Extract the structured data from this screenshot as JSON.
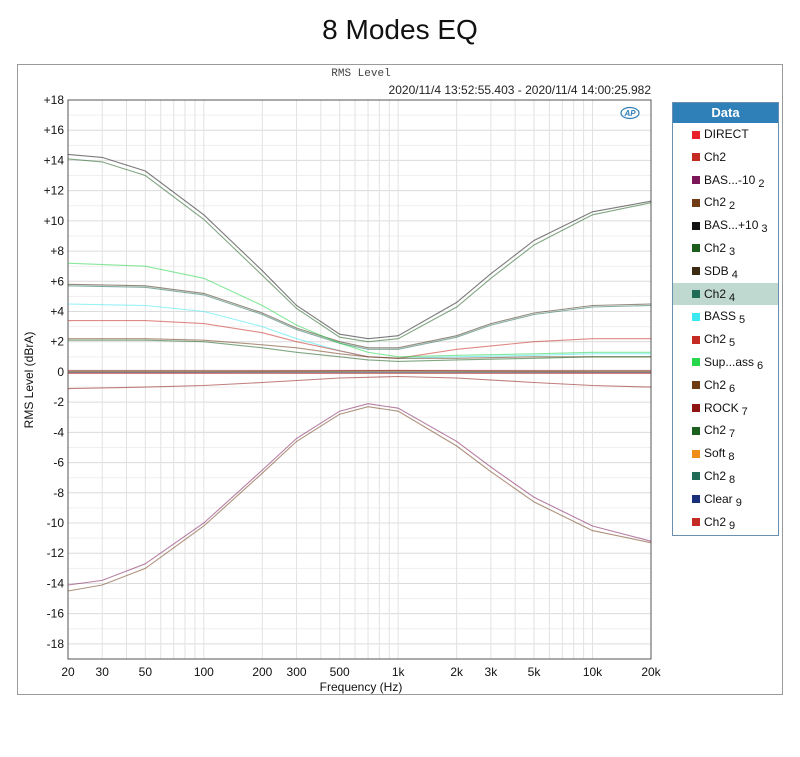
{
  "page_title": "8 Modes EQ",
  "plot_title": "RMS Level",
  "time_range": "2020/11/4 13:52:55.403 - 2020/11/4 14:00:25.982",
  "brand_logo": "AP",
  "legend": {
    "title": "Data",
    "items": [
      {
        "label": "DIRECT",
        "sub": "",
        "color": "#e8202a"
      },
      {
        "label": "Ch2",
        "sub": "",
        "color": "#c42b25"
      },
      {
        "label": "BAS...-10",
        "sub": "2",
        "color": "#7b1658"
      },
      {
        "label": "Ch2",
        "sub": "2",
        "color": "#6e3b14"
      },
      {
        "label": "BAS...+10",
        "sub": "3",
        "color": "#111111"
      },
      {
        "label": "Ch2",
        "sub": "3",
        "color": "#1c5e1e"
      },
      {
        "label": "SDB",
        "sub": "4",
        "color": "#3c2a12"
      },
      {
        "label": "Ch2",
        "sub": "4",
        "color": "#1f6b57",
        "selected": true
      },
      {
        "label": "BASS",
        "sub": "5",
        "color": "#3ee8f0"
      },
      {
        "label": "Ch2",
        "sub": "5",
        "color": "#c42b25"
      },
      {
        "label": "Sup...ass",
        "sub": "6",
        "color": "#27d64a"
      },
      {
        "label": "Ch2",
        "sub": "6",
        "color": "#6e3b14"
      },
      {
        "label": "ROCK",
        "sub": "7",
        "color": "#8e1414"
      },
      {
        "label": "Ch2",
        "sub": "7",
        "color": "#1c5e1e"
      },
      {
        "label": "Soft",
        "sub": "8",
        "color": "#f08c1a"
      },
      {
        "label": "Ch2",
        "sub": "8",
        "color": "#1f6b57"
      },
      {
        "label": "Clear",
        "sub": "9",
        "color": "#1a2f7a"
      },
      {
        "label": "Ch2",
        "sub": "9",
        "color": "#c42b25"
      }
    ]
  },
  "chart_data": {
    "type": "line",
    "xlabel": "Frequency (Hz)",
    "ylabel": "RMS Level (dBrA)",
    "x_scale": "log",
    "xlim": [
      20,
      20000
    ],
    "ylim": [
      -19,
      18
    ],
    "grid": true,
    "legend_position": "right",
    "x_ticks": [
      {
        "v": 20,
        "label": "20"
      },
      {
        "v": 30,
        "label": "30"
      },
      {
        "v": 50,
        "label": "50"
      },
      {
        "v": 100,
        "label": "100"
      },
      {
        "v": 200,
        "label": "200"
      },
      {
        "v": 300,
        "label": "300"
      },
      {
        "v": 500,
        "label": "500"
      },
      {
        "v": 1000,
        "label": "1k"
      },
      {
        "v": 2000,
        "label": "2k"
      },
      {
        "v": 3000,
        "label": "3k"
      },
      {
        "v": 5000,
        "label": "5k"
      },
      {
        "v": 10000,
        "label": "10k"
      },
      {
        "v": 20000,
        "label": "20k"
      }
    ],
    "y_ticks": [
      {
        "v": 18,
        "label": "+18"
      },
      {
        "v": 16,
        "label": "+16"
      },
      {
        "v": 14,
        "label": "+14"
      },
      {
        "v": 12,
        "label": "+12"
      },
      {
        "v": 10,
        "label": "+10"
      },
      {
        "v": 8,
        "label": "+8"
      },
      {
        "v": 6,
        "label": "+6"
      },
      {
        "v": 4,
        "label": "+4"
      },
      {
        "v": 2,
        "label": "+2"
      },
      {
        "v": 0,
        "label": "0"
      },
      {
        "v": -2,
        "label": "-2"
      },
      {
        "v": -4,
        "label": "-4"
      },
      {
        "v": -6,
        "label": "-6"
      },
      {
        "v": -8,
        "label": "-8"
      },
      {
        "v": -10,
        "label": "-10"
      },
      {
        "v": -12,
        "label": "-12"
      },
      {
        "v": -14,
        "label": "-14"
      },
      {
        "v": -16,
        "label": "-16"
      },
      {
        "v": -18,
        "label": "-18"
      }
    ],
    "series": [
      {
        "color": "#e8202a",
        "x": [
          20,
          100,
          1000,
          10000,
          20000
        ],
        "y": [
          0.0,
          0.0,
          0.1,
          0.0,
          0.0
        ]
      },
      {
        "color": "#c42b25",
        "x": [
          20,
          100,
          1000,
          10000,
          20000
        ],
        "y": [
          0.1,
          0.1,
          0.1,
          0.1,
          0.1
        ]
      },
      {
        "color": "#7b1658",
        "x": [
          20,
          30,
          50,
          100,
          200,
          300,
          500,
          700,
          1000,
          2000,
          3000,
          5000,
          10000,
          20000
        ],
        "y": [
          -14.1,
          -13.8,
          -12.7,
          -10.0,
          -6.5,
          -4.4,
          -2.6,
          -2.1,
          -2.4,
          -4.6,
          -6.3,
          -8.3,
          -10.2,
          -11.2
        ]
      },
      {
        "color": "#6e3b14",
        "x": [
          20,
          30,
          50,
          100,
          200,
          300,
          500,
          700,
          1000,
          2000,
          3000,
          5000,
          10000,
          20000
        ],
        "y": [
          -14.5,
          -14.1,
          -13.0,
          -10.2,
          -6.7,
          -4.6,
          -2.8,
          -2.3,
          -2.6,
          -4.9,
          -6.6,
          -8.6,
          -10.5,
          -11.3
        ]
      },
      {
        "color": "#111111",
        "x": [
          20,
          30,
          50,
          100,
          200,
          300,
          500,
          700,
          1000,
          2000,
          3000,
          5000,
          10000,
          20000
        ],
        "y": [
          14.4,
          14.2,
          13.3,
          10.4,
          6.7,
          4.4,
          2.5,
          2.2,
          2.4,
          4.6,
          6.5,
          8.7,
          10.6,
          11.3
        ]
      },
      {
        "color": "#1c5e1e",
        "x": [
          20,
          30,
          50,
          100,
          200,
          300,
          500,
          700,
          1000,
          2000,
          3000,
          5000,
          10000,
          20000
        ],
        "y": [
          14.1,
          13.9,
          13.0,
          10.1,
          6.4,
          4.2,
          2.3,
          2.0,
          2.2,
          4.3,
          6.2,
          8.4,
          10.4,
          11.2
        ]
      },
      {
        "color": "#3c2a12",
        "x": [
          20,
          50,
          100,
          200,
          300,
          500,
          700,
          1000,
          2000,
          3000,
          5000,
          10000,
          20000
        ],
        "y": [
          5.8,
          5.7,
          5.2,
          3.9,
          2.9,
          2.0,
          1.6,
          1.6,
          2.4,
          3.2,
          3.9,
          4.4,
          4.5
        ]
      },
      {
        "color": "#1f6b57",
        "x": [
          20,
          50,
          100,
          200,
          300,
          500,
          700,
          1000,
          2000,
          3000,
          5000,
          10000,
          20000
        ],
        "y": [
          5.7,
          5.6,
          5.1,
          3.8,
          2.8,
          1.9,
          1.5,
          1.5,
          2.3,
          3.1,
          3.8,
          4.3,
          4.4
        ]
      },
      {
        "color": "#3ee8f0",
        "x": [
          20,
          50,
          100,
          200,
          300,
          500,
          700,
          1000,
          2000,
          5000,
          10000,
          20000
        ],
        "y": [
          4.5,
          4.4,
          4.0,
          3.0,
          2.2,
          1.4,
          1.0,
          0.9,
          1.0,
          1.1,
          1.2,
          1.2
        ]
      },
      {
        "color": "#c42b25",
        "x": [
          20,
          50,
          100,
          200,
          300,
          500,
          700,
          1000,
          2000,
          5000,
          10000,
          20000
        ],
        "y": [
          3.4,
          3.4,
          3.2,
          2.6,
          2.0,
          1.4,
          1.0,
          0.9,
          1.5,
          2.0,
          2.2,
          2.2
        ]
      },
      {
        "color": "#27d64a",
        "x": [
          20,
          50,
          100,
          200,
          300,
          500,
          700,
          1000,
          2000,
          5000,
          10000,
          20000
        ],
        "y": [
          7.2,
          7.0,
          6.2,
          4.4,
          3.1,
          1.9,
          1.3,
          1.0,
          1.1,
          1.2,
          1.3,
          1.3
        ]
      },
      {
        "color": "#6e3b14",
        "x": [
          20,
          50,
          100,
          200,
          300,
          500,
          700,
          1000,
          2000,
          5000,
          10000,
          20000
        ],
        "y": [
          2.2,
          2.2,
          2.1,
          1.8,
          1.6,
          1.2,
          1.0,
          0.9,
          0.9,
          1.0,
          1.0,
          1.0
        ]
      },
      {
        "color": "#8e1414",
        "x": [
          20,
          50,
          100,
          200,
          500,
          1000,
          2000,
          5000,
          10000,
          20000
        ],
        "y": [
          -1.1,
          -1.0,
          -0.9,
          -0.7,
          -0.4,
          -0.3,
          -0.4,
          -0.7,
          -0.9,
          -1.0
        ]
      },
      {
        "color": "#1c5e1e",
        "x": [
          20,
          50,
          100,
          200,
          300,
          500,
          700,
          1000,
          2000,
          5000,
          10000,
          20000
        ],
        "y": [
          2.1,
          2.1,
          2.0,
          1.6,
          1.3,
          1.0,
          0.8,
          0.7,
          0.8,
          0.9,
          1.0,
          1.0
        ]
      },
      {
        "color": "#f08c1a",
        "x": [
          20,
          100,
          1000,
          10000,
          20000
        ],
        "y": [
          0.0,
          0.0,
          0.0,
          0.0,
          0.0
        ]
      },
      {
        "color": "#1f6b57",
        "x": [
          20,
          100,
          1000,
          10000,
          20000
        ],
        "y": [
          0.05,
          0.05,
          0.05,
          0.05,
          0.05
        ]
      },
      {
        "color": "#1a2f7a",
        "x": [
          20,
          100,
          1000,
          10000,
          20000
        ],
        "y": [
          -0.05,
          -0.05,
          -0.05,
          -0.05,
          -0.05
        ]
      },
      {
        "color": "#c42b25",
        "x": [
          20,
          100,
          1000,
          10000,
          20000
        ],
        "y": [
          -0.1,
          -0.1,
          -0.1,
          -0.1,
          -0.1
        ]
      }
    ]
  }
}
